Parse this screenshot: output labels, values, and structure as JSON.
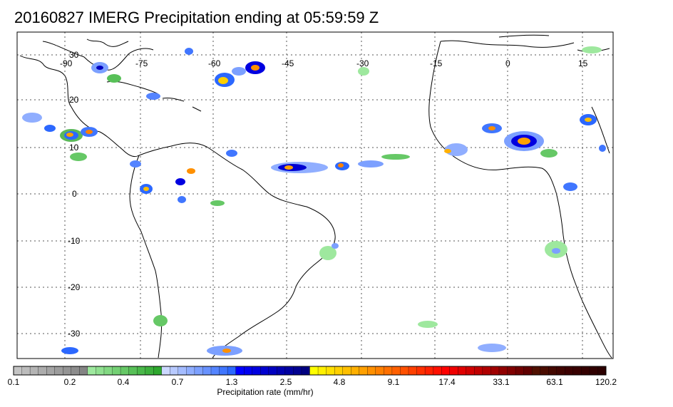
{
  "title": "20160827 IMERG Precipitation ending at 05:59:59 Z",
  "map": {
    "projection": "cylindrical",
    "lon_range": [
      -98,
      22
    ],
    "lat_range": [
      -37,
      38
    ],
    "lon_ticks": [
      "-90",
      "-75",
      "-60",
      "-45",
      "-30",
      "-15",
      "0",
      "15"
    ],
    "lat_ticks": [
      "30",
      "20",
      "10",
      "0",
      "-10",
      "-20",
      "-30"
    ],
    "grid": true
  },
  "colorbar": {
    "label": "Precipitation rate (mm/hr)",
    "tick_labels": [
      "0.1",
      "0.2",
      "0.4",
      "0.7",
      "1.3",
      "2.5",
      "4.8",
      "9.1",
      "17.4",
      "33.1",
      "63.1",
      "120.2"
    ],
    "colors": [
      "#c4c4c4",
      "#bcbcbc",
      "#b4b4b4",
      "#acacac",
      "#a4a4a4",
      "#9c9c9c",
      "#949494",
      "#8c8c8c",
      "#848484",
      "#9ee89e",
      "#90e090",
      "#82d882",
      "#74d074",
      "#66c866",
      "#58c058",
      "#4ab84a",
      "#3cb03c",
      "#2ea82e",
      "#ccd8ff",
      "#b8caff",
      "#a4bcff",
      "#90aeff",
      "#7ca0ff",
      "#6892ff",
      "#5484ff",
      "#4076ff",
      "#2c68ff",
      "#0000ff",
      "#0000f0",
      "#0000e0",
      "#0000d0",
      "#0000c0",
      "#0000b0",
      "#0000a0",
      "#000090",
      "#000080",
      "#ffff00",
      "#fff000",
      "#ffe000",
      "#ffd000",
      "#ffc000",
      "#ffb000",
      "#ffa000",
      "#ff9000",
      "#ff8000",
      "#ff7000",
      "#ff6000",
      "#ff5000",
      "#ff4000",
      "#ff3000",
      "#ff2000",
      "#ff1000",
      "#ff0000",
      "#f00000",
      "#e00000",
      "#d00000",
      "#c00000",
      "#b00000",
      "#a00000",
      "#900000",
      "#800000",
      "#700000",
      "#600000",
      "#501000",
      "#4a0c00",
      "#440800",
      "#400400",
      "#3c0000",
      "#380000",
      "#340000",
      "#300000",
      "#2c0000"
    ]
  }
}
